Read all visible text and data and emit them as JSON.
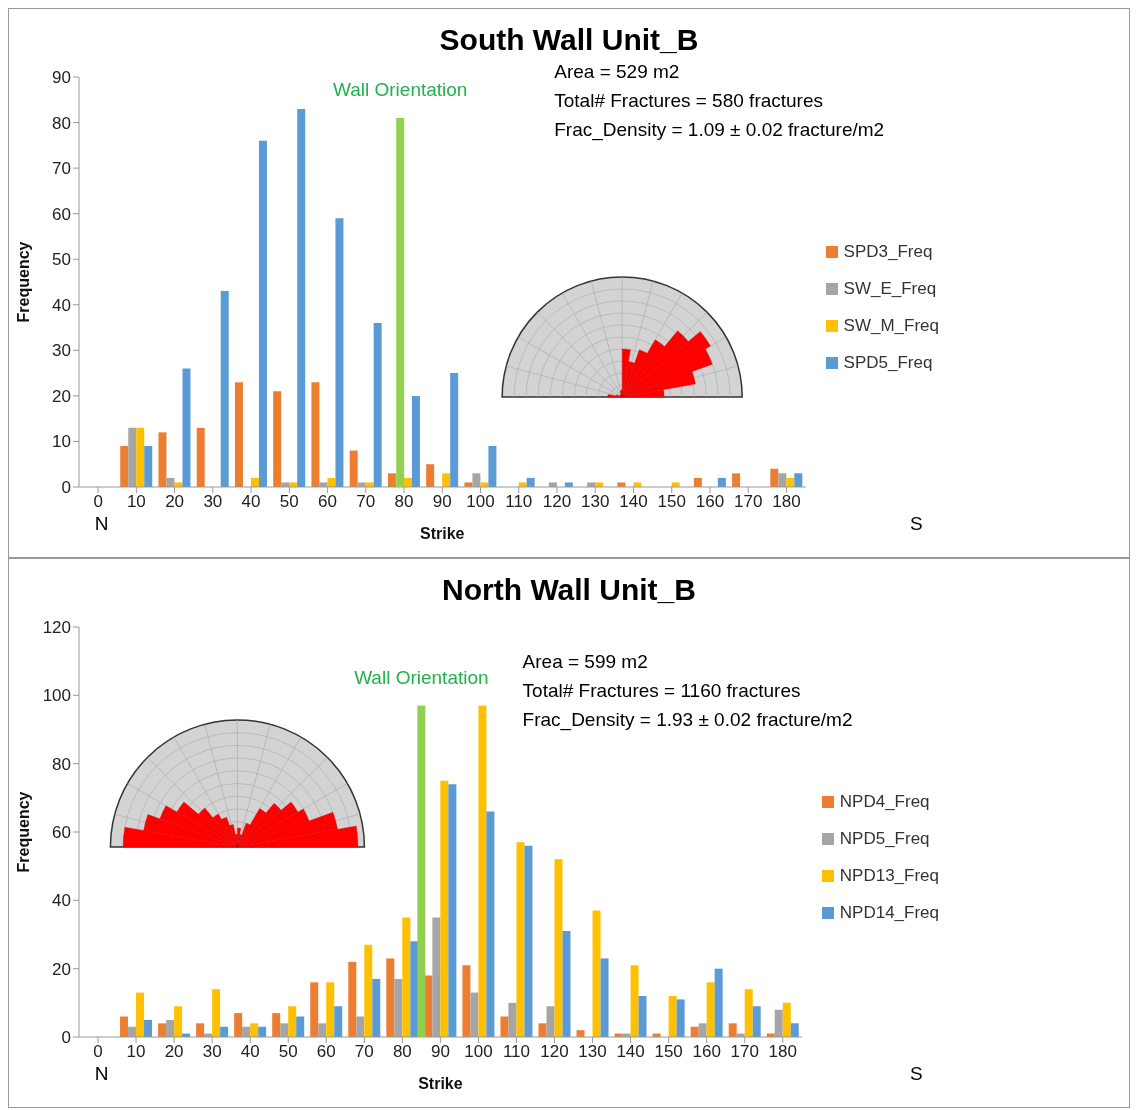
{
  "chart_data": [
    {
      "type": "bar",
      "title": "South Wall Unit_B",
      "xlabel": "Strike",
      "ylabel": "Frequency",
      "x": [
        0,
        10,
        20,
        30,
        40,
        50,
        60,
        70,
        80,
        90,
        100,
        110,
        120,
        130,
        140,
        150,
        160,
        170,
        180
      ],
      "xlim": [
        -5,
        185
      ],
      "xticks": [
        0,
        10,
        20,
        30,
        40,
        50,
        60,
        70,
        80,
        90,
        100,
        110,
        120,
        130,
        140,
        150,
        160,
        170,
        180
      ],
      "ylim": [
        0,
        90
      ],
      "yticks": [
        0,
        10,
        20,
        30,
        40,
        50,
        60,
        70,
        80,
        90
      ],
      "grid": false,
      "legend": "right",
      "series": [
        {
          "name": "SPD3_Freq",
          "color": "#ed7d31",
          "values": [
            0,
            9,
            12,
            13,
            23,
            21,
            23,
            8,
            3,
            5,
            1,
            0,
            0,
            0,
            1,
            0,
            2,
            3,
            4
          ]
        },
        {
          "name": "SW_E_Freq",
          "color": "#a5a5a5",
          "values": [
            0,
            13,
            2,
            0,
            0,
            1,
            1,
            1,
            0,
            0,
            3,
            0,
            1,
            1,
            0,
            0,
            0,
            0,
            3
          ]
        },
        {
          "name": "SW_M_Freq",
          "color": "#ffc000",
          "values": [
            0,
            13,
            1,
            0,
            2,
            1,
            2,
            1,
            2,
            3,
            1,
            1,
            0,
            1,
            1,
            1,
            0,
            0,
            2
          ]
        },
        {
          "name": "SPD5_Freq",
          "color": "#5b9bd5",
          "values": [
            0,
            9,
            26,
            43,
            76,
            83,
            59,
            36,
            20,
            25,
            9,
            2,
            1,
            0,
            0,
            0,
            2,
            0,
            3
          ]
        },
        {
          "name": "Wall Orientation",
          "type": "bar",
          "color": "#92d050",
          "x": [
            79
          ],
          "values": [
            81
          ]
        }
      ],
      "annotations": [
        "Area = 529 m2",
        "Total# Fractures = 580 fractures",
        "Frac_Density = 1.09 ± 0.02 fracture/m2",
        "N",
        "S"
      ]
    },
    {
      "type": "bar",
      "title": "North Wall Unit_B",
      "xlabel": "Strike",
      "ylabel": "Frequency",
      "x": [
        0,
        10,
        20,
        30,
        40,
        50,
        60,
        70,
        80,
        90,
        100,
        110,
        120,
        130,
        140,
        150,
        160,
        170,
        180
      ],
      "xlim": [
        -5,
        185
      ],
      "xticks": [
        0,
        10,
        20,
        30,
        40,
        50,
        60,
        70,
        80,
        90,
        100,
        110,
        120,
        130,
        140,
        150,
        160,
        170,
        180
      ],
      "ylim": [
        0,
        120
      ],
      "yticks": [
        0,
        20,
        40,
        60,
        80,
        100,
        120
      ],
      "grid": false,
      "legend": "right",
      "series": [
        {
          "name": "NPD4_Freq",
          "color": "#ed7d31",
          "values": [
            0,
            6,
            4,
            4,
            7,
            7,
            16,
            22,
            23,
            18,
            21,
            6,
            4,
            2,
            1,
            1,
            3,
            4,
            1
          ]
        },
        {
          "name": "NPD5_Freq",
          "color": "#a5a5a5",
          "values": [
            0,
            3,
            5,
            1,
            3,
            4,
            4,
            6,
            17,
            35,
            13,
            10,
            9,
            0,
            1,
            0,
            4,
            1,
            8
          ]
        },
        {
          "name": "NPD13_Freq",
          "color": "#ffc000",
          "values": [
            0,
            13,
            9,
            14,
            4,
            9,
            16,
            27,
            35,
            75,
            97,
            57,
            52,
            37,
            21,
            12,
            16,
            14,
            10
          ]
        },
        {
          "name": "NPD14_Freq",
          "color": "#5b9bd5",
          "values": [
            0,
            5,
            1,
            3,
            3,
            6,
            9,
            17,
            28,
            74,
            66,
            56,
            31,
            23,
            12,
            11,
            20,
            9,
            4
          ]
        },
        {
          "name": "Wall Orientation",
          "type": "bar",
          "color": "#92d050",
          "x": [
            85
          ],
          "values": [
            97
          ]
        }
      ],
      "annotations": [
        "Area = 599 m2",
        "Total# Fractures = 1160 fractures",
        "Frac_Density = 1.93 ± 0.02 fracture/m2",
        "N",
        "S"
      ]
    }
  ]
}
